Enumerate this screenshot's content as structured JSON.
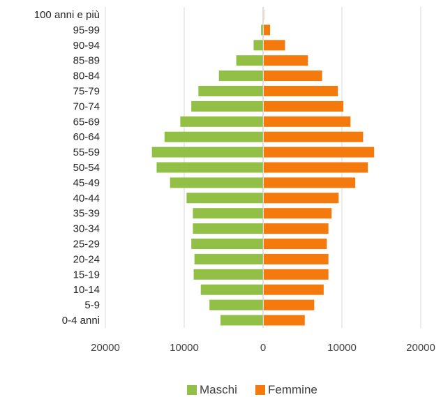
{
  "chart_data": {
    "type": "bar",
    "orientation": "horizontal-pyramid",
    "categories": [
      "0-4 anni",
      "5-9",
      "10-14",
      "15-19",
      "20-24",
      "25-29",
      "30-34",
      "35-39",
      "40-44",
      "45-49",
      "50-54",
      "55-59",
      "60-64",
      "65-69",
      "70-74",
      "75-79",
      "80-84",
      "85-89",
      "90-94",
      "95-99",
      "100 anni e più"
    ],
    "series": [
      {
        "name": "Maschi",
        "color": "#92c046",
        "values": [
          5400,
          6800,
          7900,
          8800,
          8700,
          9100,
          8900,
          8900,
          9700,
          11800,
          13500,
          14100,
          12500,
          10500,
          9100,
          8200,
          5600,
          3400,
          1200,
          250,
          20
        ]
      },
      {
        "name": "Femmine",
        "color": "#f47a0e",
        "values": [
          5200,
          6400,
          7600,
          8200,
          8200,
          8000,
          8200,
          8600,
          9500,
          11600,
          13200,
          14000,
          12600,
          11000,
          10100,
          9400,
          7400,
          5600,
          2700,
          800,
          30
        ]
      }
    ],
    "x_ticks": [
      "20000",
      "10000",
      "0",
      "10000",
      "20000"
    ],
    "xlim": [
      -20000,
      20000
    ],
    "grid": true,
    "legend": "bottom"
  }
}
